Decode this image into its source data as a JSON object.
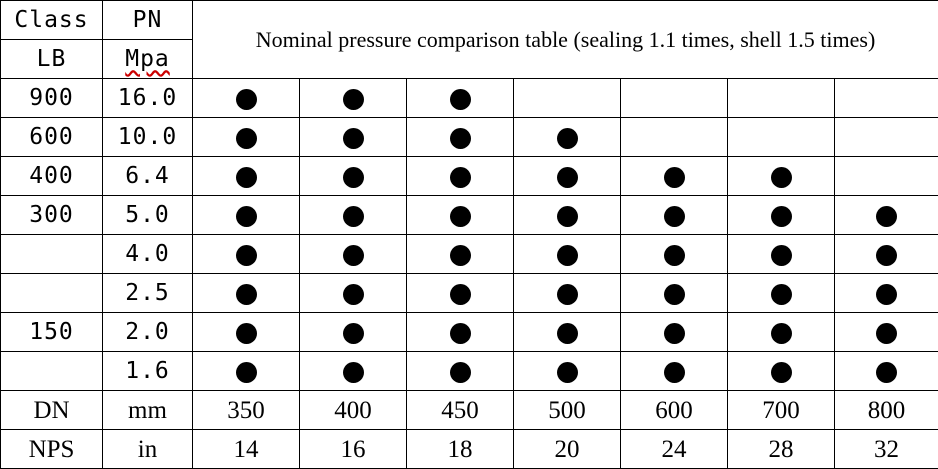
{
  "table": {
    "title": "Nominal pressure comparison table (sealing 1.1 times, shell 1.5 times)",
    "header": {
      "class_label": "Class",
      "pn_label": "PN",
      "lb_label": "LB",
      "mpa_label": "Mpa"
    },
    "rows": [
      {
        "class": "900",
        "pn": "16.0",
        "available": [
          true,
          true,
          true,
          false,
          false,
          false,
          false
        ]
      },
      {
        "class": "600",
        "pn": "10.0",
        "available": [
          true,
          true,
          true,
          true,
          false,
          false,
          false
        ]
      },
      {
        "class": "400",
        "pn": "6.4",
        "available": [
          true,
          true,
          true,
          true,
          true,
          true,
          false
        ]
      },
      {
        "class": "300",
        "pn": "5.0",
        "available": [
          true,
          true,
          true,
          true,
          true,
          true,
          true
        ]
      },
      {
        "class": "",
        "pn": "4.0",
        "available": [
          true,
          true,
          true,
          true,
          true,
          true,
          true
        ]
      },
      {
        "class": "",
        "pn": "2.5",
        "available": [
          true,
          true,
          true,
          true,
          true,
          true,
          true
        ]
      },
      {
        "class": "150",
        "pn": "2.0",
        "available": [
          true,
          true,
          true,
          true,
          true,
          true,
          true
        ]
      },
      {
        "class": "",
        "pn": "1.6",
        "available": [
          true,
          true,
          true,
          true,
          true,
          true,
          true
        ]
      }
    ],
    "dn_row": {
      "label": "DN",
      "unit": "mm",
      "values": [
        "350",
        "400",
        "450",
        "500",
        "600",
        "700",
        "800"
      ]
    },
    "nps_row": {
      "label": "NPS",
      "unit": "in",
      "values": [
        "14",
        "16",
        "18",
        "20",
        "24",
        "28",
        "32"
      ]
    },
    "marker_icon": "filled-circle-icon"
  }
}
